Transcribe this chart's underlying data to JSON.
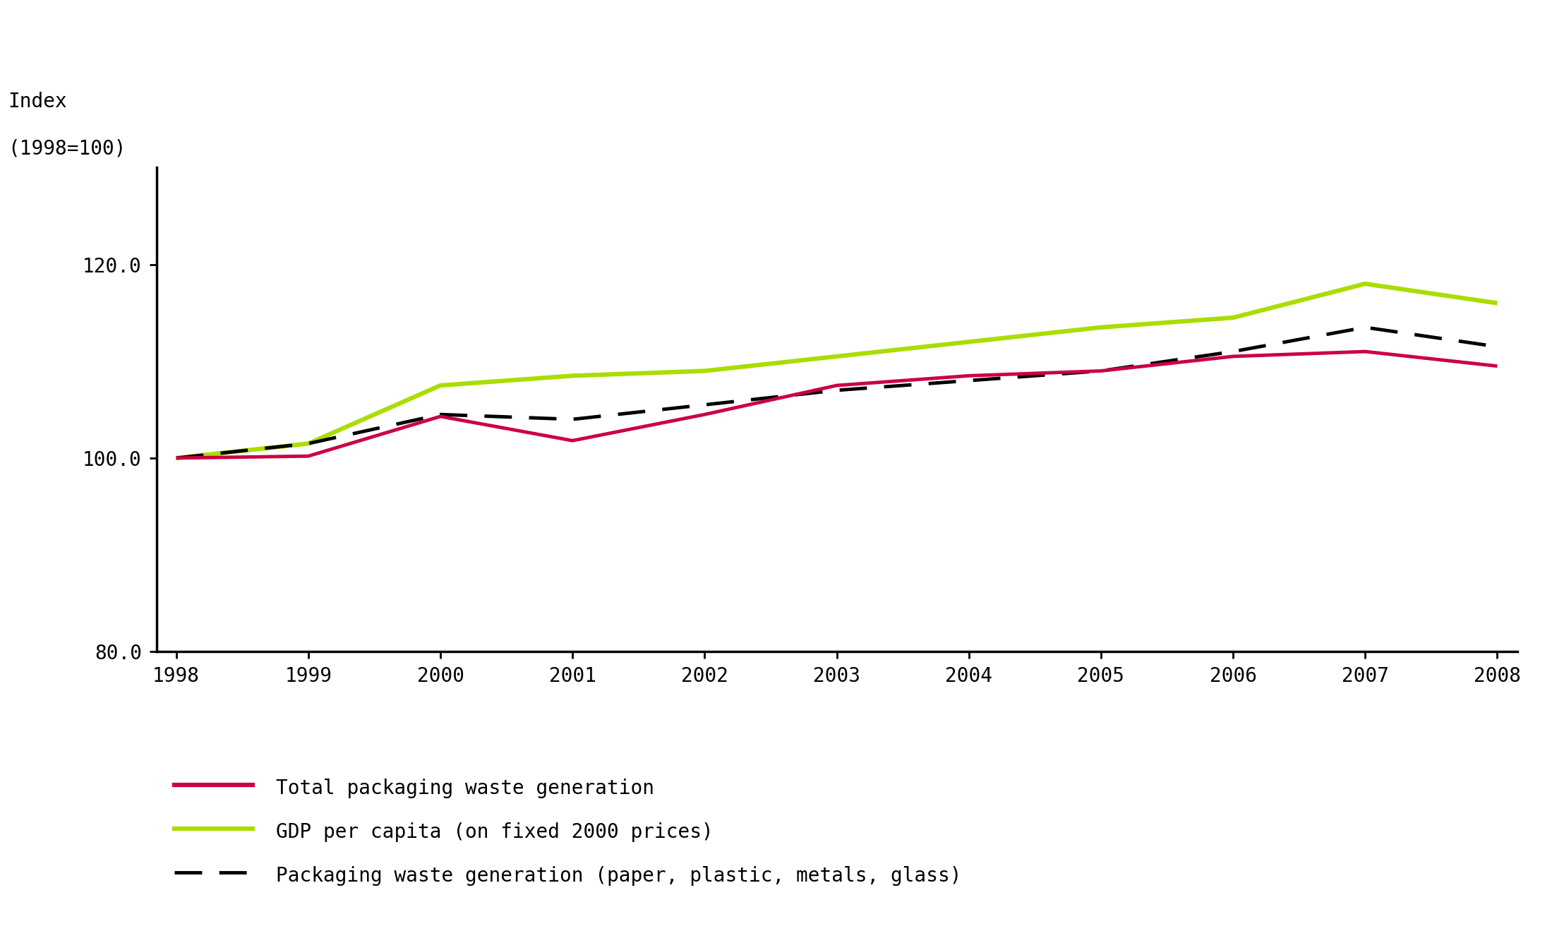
{
  "years": [
    1998,
    1999,
    2000,
    2001,
    2002,
    2003,
    2004,
    2005,
    2006,
    2007,
    2008
  ],
  "total_packaging": [
    100.0,
    100.2,
    104.3,
    101.8,
    104.5,
    107.5,
    108.5,
    109.0,
    110.5,
    111.0,
    109.5
  ],
  "gdp_per_capita": [
    100.0,
    101.5,
    107.5,
    108.5,
    109.0,
    110.5,
    112.0,
    113.5,
    114.5,
    118.0,
    116.0
  ],
  "packaging_subset": [
    100.0,
    101.5,
    104.5,
    104.0,
    105.5,
    107.0,
    108.0,
    109.0,
    111.0,
    113.5,
    111.5
  ],
  "total_packaging_color": "#cc0044",
  "gdp_color": "#aadd00",
  "packaging_subset_color": "#000000",
  "ylabel_line1": "Index",
  "ylabel_line2": "(1998=100)",
  "ylim_min": 80.0,
  "ylim_max": 130.0,
  "yticks": [
    80.0,
    100.0,
    120.0
  ],
  "line_width": 3.5,
  "legend_labels": [
    "Total packaging waste generation",
    "GDP per capita (on fixed 2000 prices)",
    "Packaging waste generation (paper, plastic, metals, glass)"
  ],
  "background_color": "#ffffff",
  "font_family": "monospace",
  "tick_fontsize": 20,
  "label_fontsize": 20
}
